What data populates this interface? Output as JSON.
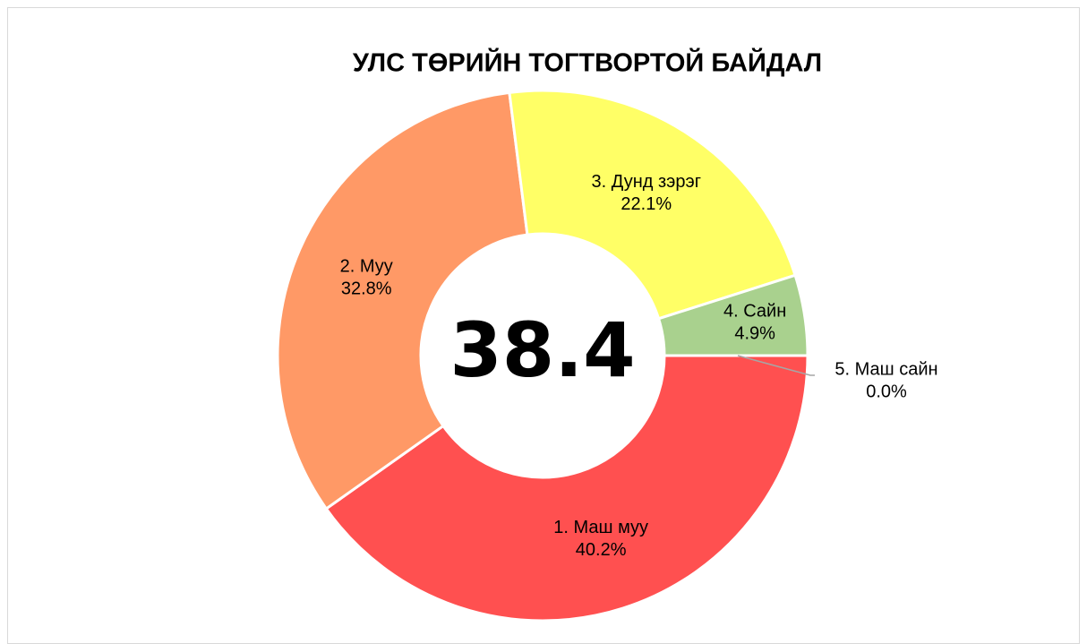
{
  "chart_data": {
    "type": "donut",
    "title": "УЛС ТӨРИЙН ТОГТВОРТОЙ БАЙДАЛ",
    "categories": [
      "1. Маш муу",
      "2. Муу",
      "3. Дунд зэрэг",
      "4. Сайн",
      "5. Маш сайн"
    ],
    "values": [
      40.2,
      32.8,
      22.1,
      4.9,
      0.0
    ],
    "value_labels": [
      "40.2%",
      "32.8%",
      "22.1%",
      "4.9%",
      "0.0%"
    ],
    "colors": [
      "#ff5050",
      "#ff9966",
      "#ffff66",
      "#a9d18e",
      "#70ad47"
    ],
    "center_value": 38.4
  }
}
